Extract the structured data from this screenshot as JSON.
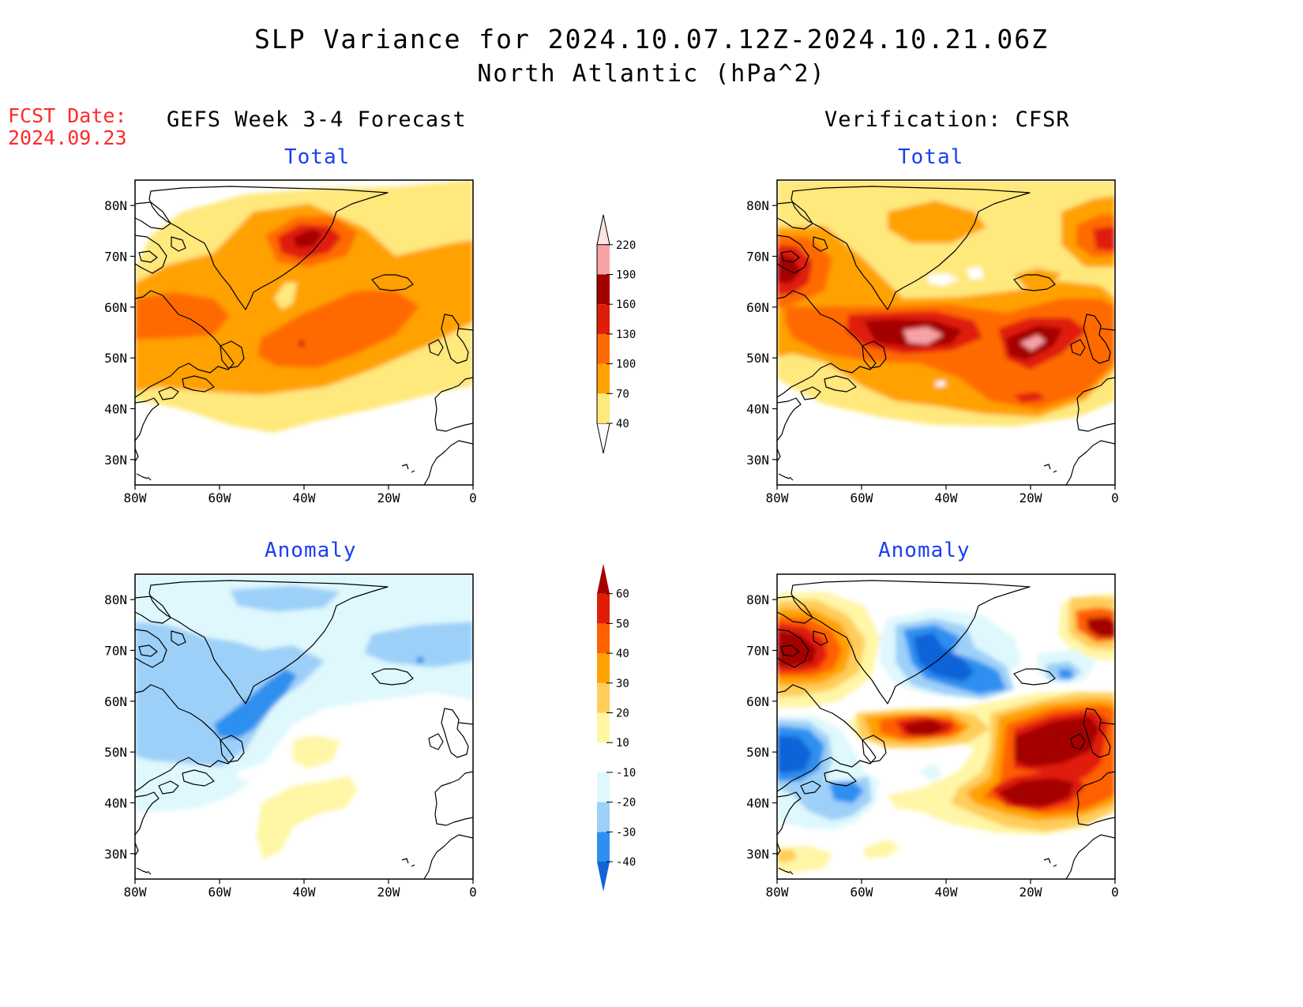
{
  "title": {
    "line1": "SLP Variance for 2024.10.07.12Z-2024.10.21.06Z",
    "line2": "North Atlantic (hPa^2)"
  },
  "fcst_date": {
    "label": "FCST Date:",
    "value": "2024.09.23"
  },
  "columns": {
    "left": "GEFS Week 3-4 Forecast",
    "right": "Verification: CFSR"
  },
  "panel_titles": {
    "total": "Total",
    "anomaly": "Anomaly"
  },
  "axes": {
    "lat_labels": [
      "80N",
      "70N",
      "60N",
      "50N",
      "40N",
      "30N"
    ],
    "lon_labels": [
      "80W",
      "60W",
      "40W",
      "20W",
      "0"
    ]
  },
  "colorbars": {
    "total": {
      "labels": [
        "40",
        "70",
        "100",
        "130",
        "160",
        "190",
        "220"
      ],
      "colors": [
        "#ffe87c",
        "#ffa100",
        "#ff6a00",
        "#e01e08",
        "#a50000",
        "#f7a3a6",
        "#fde3e3"
      ]
    },
    "anomaly": {
      "labels": [
        "-40",
        "-30",
        "-20",
        "-10",
        "10",
        "20",
        "30",
        "40",
        "50",
        "60"
      ],
      "colors": [
        "#1064d8",
        "#2f8ff0",
        "#9dd0f8",
        "#dff8fd",
        "#ffffff",
        "#fff6a6",
        "#ffcd5a",
        "#ffa100",
        "#ff6000",
        "#e01e08",
        "#a50000"
      ]
    }
  },
  "map_data": {
    "region": "North Atlantic",
    "lon_range": [
      "80W",
      "0"
    ],
    "lat_range": [
      "25N",
      "85N"
    ],
    "panels": [
      "forecast-total",
      "verification-total",
      "forecast-anomaly",
      "verification-anomaly"
    ]
  }
}
